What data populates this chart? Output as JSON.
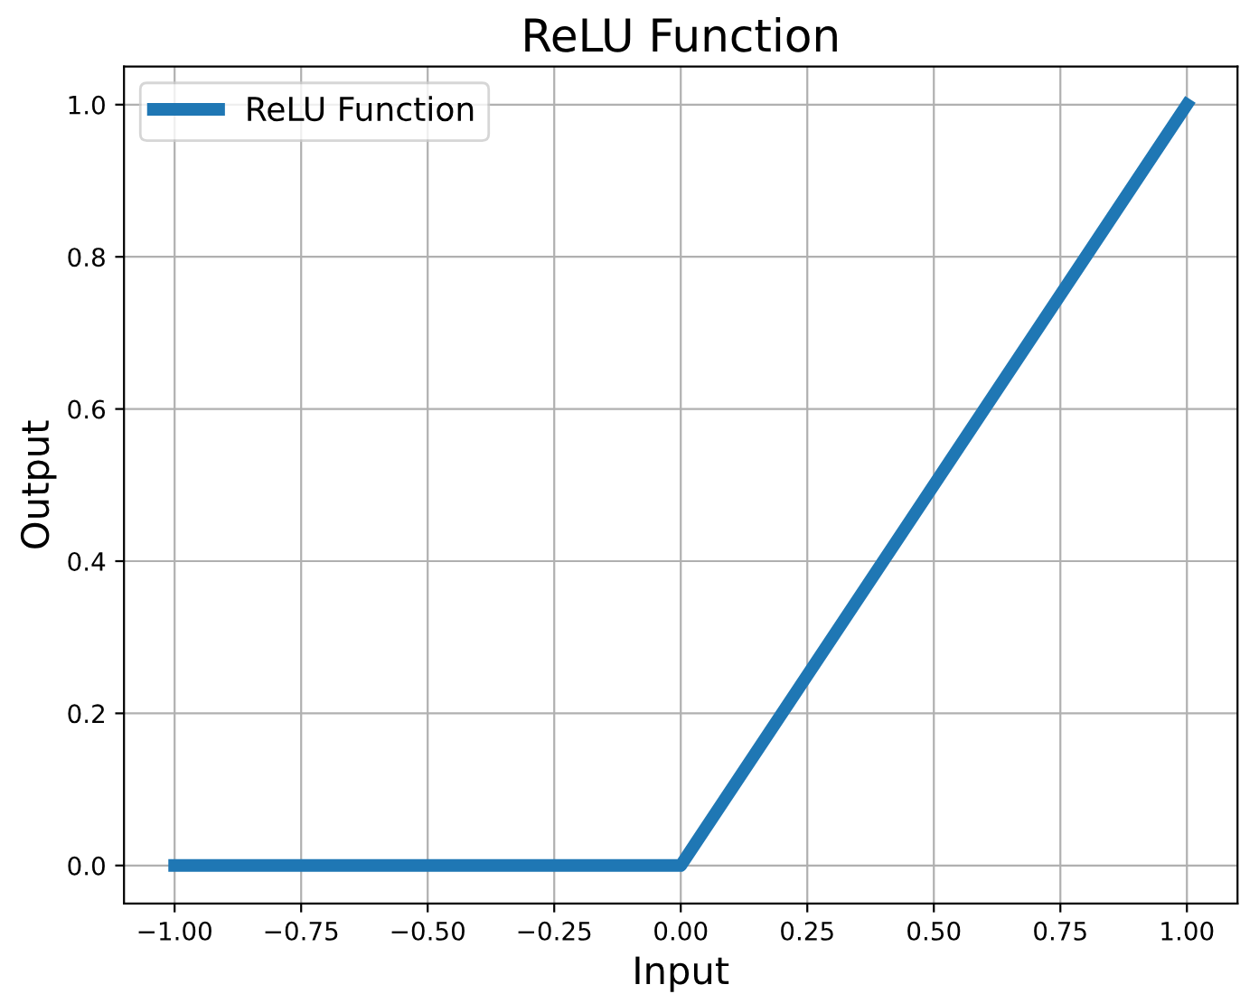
{
  "chart_data": {
    "type": "line",
    "title": "ReLU Function",
    "xlabel": "Input",
    "ylabel": "Output",
    "x": [
      -1.0,
      0.0,
      1.0
    ],
    "series": [
      {
        "name": "ReLU Function",
        "color": "#1f77b4",
        "values": [
          0.0,
          0.0,
          1.0
        ]
      }
    ],
    "xlim": [
      -1.1,
      1.1
    ],
    "ylim": [
      -0.05,
      1.05
    ],
    "xticks": [
      {
        "value": -1.0,
        "label": "−1.00"
      },
      {
        "value": -0.75,
        "label": "−0.75"
      },
      {
        "value": -0.5,
        "label": "−0.50"
      },
      {
        "value": -0.25,
        "label": "−0.25"
      },
      {
        "value": 0.0,
        "label": "0.00"
      },
      {
        "value": 0.25,
        "label": "0.25"
      },
      {
        "value": 0.5,
        "label": "0.50"
      },
      {
        "value": 0.75,
        "label": "0.75"
      },
      {
        "value": 1.0,
        "label": "1.00"
      }
    ],
    "yticks": [
      {
        "value": 0.0,
        "label": "0.0"
      },
      {
        "value": 0.2,
        "label": "0.2"
      },
      {
        "value": 0.4,
        "label": "0.4"
      },
      {
        "value": 0.6,
        "label": "0.6"
      },
      {
        "value": 0.8,
        "label": "0.8"
      },
      {
        "value": 1.0,
        "label": "1.0"
      }
    ],
    "grid": true,
    "legend": "top left",
    "line_style": "solid",
    "marker": "none"
  }
}
